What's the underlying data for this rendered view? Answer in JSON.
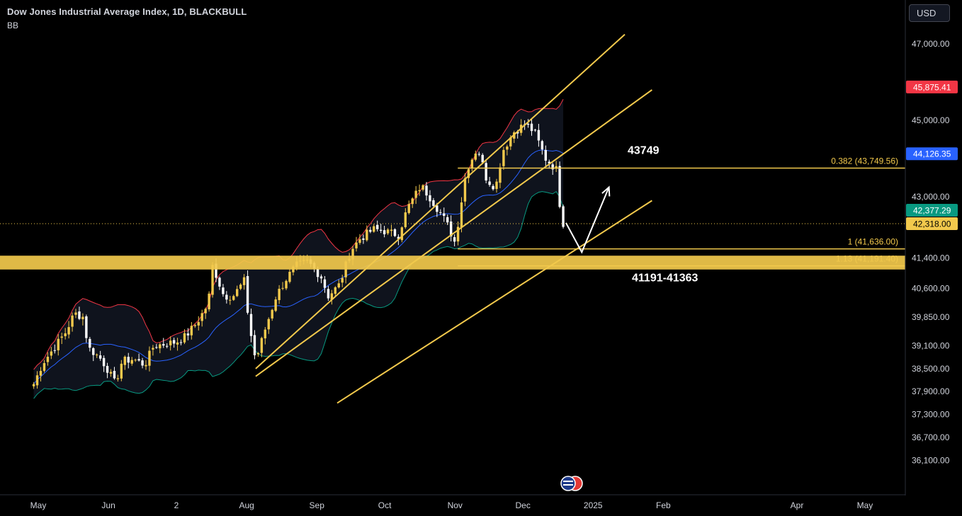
{
  "header": {
    "title": "Dow Jones Industrial Average Index, 1D, BLACKBULL",
    "indicator": "BB"
  },
  "currency_button": "USD",
  "colors": {
    "background": "#000000",
    "up_candle": "#f2c94c",
    "down_candle": "#ffffff",
    "bb_upper": "#f23645",
    "bb_basis": "#2962ff",
    "bb_lower": "#089981",
    "channel_lines": "#f2c94c",
    "fib_lines": "#f2c94c",
    "last_price_badge": "#f2c94c",
    "upper_badge": "#f23645",
    "basis_badge": "#2962ff",
    "lower_badge": "#089981"
  },
  "chart_data": {
    "type": "candlestick",
    "title": "Dow Jones Industrial Average Index, 1D, BLACKBULL",
    "ylim": [
      35600,
      48100
    ],
    "y_ticks": [
      "47,000.00",
      "45,875.41",
      "45,000.00",
      "44,126.35",
      "43,000.00",
      "42,377.29",
      "42,318.00",
      "41,400.00",
      "40,600.00",
      "39,850.00",
      "39,100.00",
      "38,500.00",
      "37,900.00",
      "37,300.00",
      "36,700.00",
      "36,100.00"
    ],
    "y_tick_values": [
      47000,
      45875.41,
      45000,
      44126.35,
      43000,
      42377.29,
      42318,
      41400,
      40600,
      39850,
      39100,
      38500,
      37900,
      37300,
      36700,
      36100
    ],
    "x_ticks": [
      "May",
      "Jun",
      "2",
      "Aug",
      "Sep",
      "Oct",
      "Nov",
      "Dec",
      "2025",
      "Feb",
      "Apr",
      "May"
    ],
    "series_close_points": [
      [
        "2024-04-29",
        38100
      ],
      [
        "2024-05-03",
        38650
      ],
      [
        "2024-05-08",
        39050
      ],
      [
        "2024-05-13",
        39450
      ],
      [
        "2024-05-17",
        39950
      ],
      [
        "2024-05-21",
        39850
      ],
      [
        "2024-05-23",
        39050
      ],
      [
        "2024-05-28",
        38800
      ],
      [
        "2024-05-31",
        38550
      ],
      [
        "2024-06-04",
        38100
      ],
      [
        "2024-06-07",
        38700
      ],
      [
        "2024-06-12",
        38750
      ],
      [
        "2024-06-17",
        38600
      ],
      [
        "2024-06-21",
        39100
      ],
      [
        "2024-06-26",
        39150
      ],
      [
        "2024-07-01",
        39200
      ],
      [
        "2024-07-05",
        39350
      ],
      [
        "2024-07-10",
        39700
      ],
      [
        "2024-07-15",
        40200
      ],
      [
        "2024-07-17",
        41200
      ],
      [
        "2024-07-22",
        40400
      ],
      [
        "2024-07-26",
        40400
      ],
      [
        "2024-07-31",
        40800
      ],
      [
        "2024-08-02",
        39700
      ],
      [
        "2024-08-05",
        38700
      ],
      [
        "2024-08-09",
        39500
      ],
      [
        "2024-08-14",
        40400
      ],
      [
        "2024-08-19",
        40900
      ],
      [
        "2024-08-23",
        41200
      ],
      [
        "2024-08-28",
        41300
      ],
      [
        "2024-09-03",
        40900
      ],
      [
        "2024-09-06",
        40400
      ],
      [
        "2024-09-11",
        40700
      ],
      [
        "2024-09-16",
        41600
      ],
      [
        "2024-09-20",
        41900
      ],
      [
        "2024-09-26",
        42150
      ],
      [
        "2024-10-01",
        42100
      ],
      [
        "2024-10-07",
        42000
      ],
      [
        "2024-10-11",
        42700
      ],
      [
        "2024-10-17",
        43300
      ],
      [
        "2024-10-22",
        42900
      ],
      [
        "2024-10-28",
        42350
      ],
      [
        "2024-11-01",
        41800
      ],
      [
        "2024-11-06",
        43700
      ],
      [
        "2024-11-11",
        44300
      ],
      [
        "2024-11-15",
        43450
      ],
      [
        "2024-11-19",
        43250
      ],
      [
        "2024-11-22",
        44200
      ],
      [
        "2024-11-27",
        44700
      ],
      [
        "2024-12-02",
        44900
      ],
      [
        "2024-12-06",
        44700
      ],
      [
        "2024-12-11",
        44000
      ],
      [
        "2024-12-16",
        43700
      ],
      [
        "2024-12-18",
        42300
      ],
      [
        "2024-12-20",
        42318
      ]
    ],
    "bollinger_bands": {
      "name": "BB",
      "upper_last": 45875.41,
      "basis_last": 44126.35,
      "lower_last": 42377.29
    },
    "last_price": 42318.0,
    "channels": [
      {
        "from": [
          "2024-08-05",
          38500
        ],
        "to": [
          "2025-01-15",
          47250
        ]
      },
      {
        "from": [
          "2024-08-05",
          38300
        ],
        "to": [
          "2025-01-27",
          45800
        ]
      },
      {
        "from": [
          "2024-09-10",
          37600
        ],
        "to": [
          "2025-01-27",
          42900
        ]
      }
    ],
    "fib_levels": [
      {
        "label": "0.382 (43,749.56)",
        "value": 43749.56
      },
      {
        "label": "1 (41,636.00)",
        "value": 41636.0
      },
      {
        "label": "1.13 (41,191.40)",
        "value": 41191.4
      }
    ],
    "support_zone": {
      "low": 41191,
      "high": 41363
    },
    "annotations": [
      "43749",
      "41191-41363"
    ],
    "projection_path": [
      [
        "2024-12-20",
        42318
      ],
      [
        "2024-12-27",
        41550
      ],
      [
        "2025-01-08",
        43250
      ]
    ]
  }
}
